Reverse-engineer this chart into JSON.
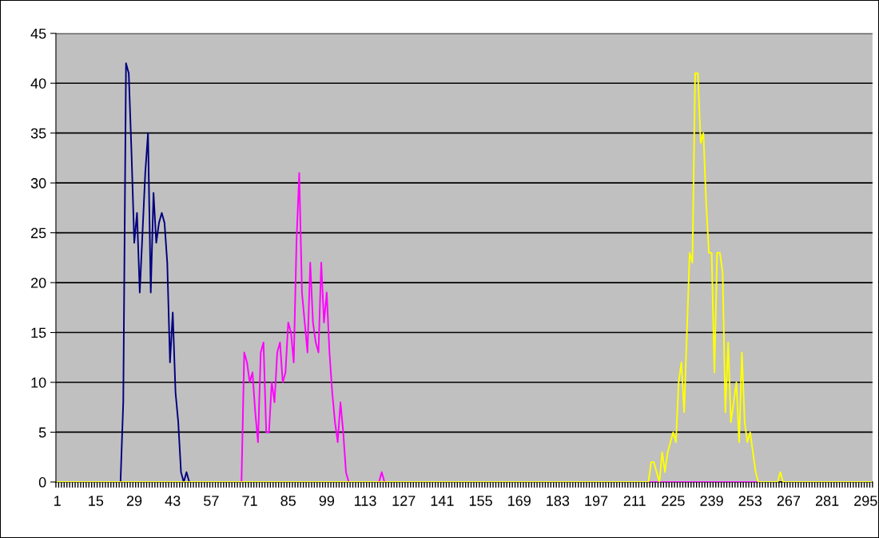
{
  "chart_data": {
    "type": "line",
    "categories": [
      "1",
      null,
      null,
      null,
      null,
      null,
      null,
      null,
      null,
      null,
      null,
      null,
      null,
      null,
      "15",
      null,
      null,
      null,
      null,
      null,
      null,
      null,
      null,
      null,
      null,
      null,
      null,
      null,
      "29",
      null,
      null,
      null,
      null,
      null,
      null,
      null,
      null,
      null,
      null,
      null,
      null,
      null,
      "43",
      null,
      null,
      null,
      null,
      null,
      null,
      null,
      null,
      null,
      null,
      null,
      null,
      null,
      "57",
      null,
      null,
      null,
      null,
      null,
      null,
      null,
      null,
      null,
      null,
      null,
      null,
      null,
      "71",
      null,
      null,
      null,
      null,
      null,
      null,
      null,
      null,
      null,
      null,
      null,
      null,
      null,
      "85",
      null,
      null,
      null,
      null,
      null,
      null,
      null,
      null,
      null,
      null,
      null,
      null,
      null,
      "99",
      null,
      null,
      null,
      null,
      null,
      null,
      null,
      null,
      null,
      null,
      null,
      null,
      null,
      "113",
      null,
      null,
      null,
      null,
      null,
      null,
      null,
      null,
      null,
      null,
      null,
      null,
      null,
      "127",
      null,
      null,
      null,
      null,
      null,
      null,
      null,
      null,
      null,
      null,
      null,
      null,
      null,
      "141",
      null,
      null,
      null,
      null,
      null,
      null,
      null,
      null,
      null,
      null,
      null,
      null,
      null,
      "155",
      null,
      null,
      null,
      null,
      null,
      null,
      null,
      null,
      null,
      null,
      null,
      null,
      null,
      "169",
      null,
      null,
      null,
      null,
      null,
      null,
      null,
      null,
      null,
      null,
      null,
      null,
      null,
      "183",
      null,
      null,
      null,
      null,
      null,
      null,
      null,
      null,
      null,
      null,
      null,
      null,
      null,
      "197",
      null,
      null,
      null,
      null,
      null,
      null,
      null,
      null,
      null,
      null,
      null,
      null,
      null,
      "211",
      null,
      null,
      null,
      null,
      null,
      null,
      null,
      null,
      null,
      null,
      null,
      null,
      null,
      "225",
      null,
      null,
      null,
      null,
      null,
      null,
      null,
      null,
      null,
      null,
      null,
      null,
      null,
      "239",
      null,
      null,
      null,
      null,
      null,
      null,
      null,
      null,
      null,
      null,
      null,
      null,
      null,
      "253",
      null,
      null,
      null,
      null,
      null,
      null,
      null,
      null,
      null,
      null,
      null,
      null,
      null,
      "267",
      null,
      null,
      null,
      null,
      null,
      null,
      null,
      null,
      null,
      null,
      null,
      null,
      null,
      "281",
      null,
      null,
      null,
      null,
      null,
      null,
      null,
      null,
      null,
      null,
      null,
      null,
      null,
      "295",
      null,
      null
    ],
    "series": [
      {
        "color": "#000080",
        "values": [
          null,
          null,
          null,
          null,
          null,
          null,
          null,
          null,
          null,
          null,
          null,
          null,
          null,
          null,
          null,
          null,
          null,
          null,
          null,
          null,
          null,
          null,
          0,
          0,
          8,
          42,
          41,
          33,
          24,
          27,
          19,
          25,
          31,
          35,
          19,
          29,
          24,
          26,
          27,
          26,
          22,
          12,
          17,
          9,
          6,
          1,
          0,
          1,
          0,
          null,
          null,
          null,
          null,
          null,
          null,
          null,
          null,
          null,
          null,
          null,
          null,
          null,
          null,
          null,
          null,
          null,
          null,
          null,
          null,
          null,
          null,
          null,
          null,
          null,
          null,
          null,
          null,
          null,
          null,
          null,
          null,
          null,
          null,
          null,
          null,
          null,
          null,
          null,
          null,
          null,
          null,
          null,
          null,
          null,
          null,
          null,
          null,
          null,
          null,
          null,
          null,
          null,
          null,
          null,
          null,
          null,
          null,
          null,
          null,
          null,
          null,
          null,
          null,
          null,
          null,
          null,
          null,
          null,
          null,
          null,
          null,
          null,
          null,
          null,
          null,
          null,
          null,
          null,
          null,
          null,
          null,
          null,
          null,
          null,
          null,
          null,
          null,
          null,
          null,
          null,
          null,
          null,
          null,
          null,
          null,
          null,
          null,
          null,
          null,
          null,
          null,
          null,
          null,
          null,
          null,
          null,
          null,
          null,
          null,
          null,
          null,
          null,
          null,
          null,
          null,
          null,
          null,
          null,
          null,
          null,
          null,
          null,
          null,
          null,
          null,
          null,
          null,
          null,
          null,
          null,
          null,
          null,
          null,
          null,
          null,
          null,
          null,
          null,
          null,
          null,
          null,
          null,
          null,
          null,
          null,
          null,
          null,
          null,
          null,
          null,
          null,
          null,
          null,
          null,
          null,
          null,
          null,
          null,
          null,
          null,
          null,
          null,
          null,
          null,
          null,
          null,
          null,
          null,
          null,
          null,
          null,
          null,
          null,
          null,
          null,
          null,
          null,
          null,
          null,
          null,
          null,
          null,
          null,
          null,
          null,
          null,
          null,
          null,
          null,
          null,
          null,
          null,
          null,
          null,
          null,
          null,
          null,
          null,
          null,
          null,
          null,
          null,
          null,
          null,
          null,
          null,
          null,
          null,
          null,
          null,
          null,
          null,
          null,
          null,
          null,
          null,
          null,
          null,
          null,
          null,
          null,
          null,
          null,
          null,
          null,
          null,
          null,
          null,
          null,
          null,
          null,
          null,
          null,
          null,
          null,
          null,
          null,
          null,
          null,
          null,
          null,
          null,
          null,
          null,
          null,
          null,
          null
        ]
      },
      {
        "color": "#ff00ff",
        "values": [
          null,
          null,
          null,
          null,
          null,
          null,
          null,
          null,
          null,
          null,
          null,
          null,
          null,
          null,
          null,
          null,
          null,
          null,
          null,
          null,
          null,
          null,
          null,
          null,
          null,
          null,
          null,
          null,
          null,
          null,
          null,
          null,
          null,
          null,
          null,
          null,
          null,
          null,
          null,
          null,
          null,
          null,
          null,
          null,
          null,
          null,
          null,
          null,
          null,
          null,
          null,
          null,
          null,
          null,
          null,
          null,
          null,
          null,
          null,
          null,
          null,
          null,
          null,
          null,
          null,
          null,
          0,
          0,
          13,
          12,
          10,
          11,
          7,
          4,
          13,
          14,
          5,
          5,
          10,
          8,
          13,
          14,
          10,
          11,
          16,
          15,
          12,
          24,
          31,
          19,
          16,
          13,
          22,
          16,
          14,
          13,
          22,
          16,
          19,
          13,
          9,
          6,
          4,
          8,
          5,
          1,
          0,
          0,
          0,
          0,
          0,
          0,
          0,
          0,
          0,
          0,
          0,
          0,
          1,
          0,
          0,
          null,
          null,
          null,
          null,
          null,
          null,
          null,
          null,
          null,
          null,
          null,
          null,
          null,
          null,
          null,
          null,
          null,
          null,
          null,
          null,
          null,
          null,
          null,
          null,
          null,
          null,
          null,
          null,
          null,
          null,
          null,
          null,
          null,
          null,
          null,
          null,
          null,
          null,
          null,
          null,
          null,
          null,
          null,
          null,
          null,
          null,
          null,
          null,
          null,
          null,
          null,
          null,
          null,
          null,
          null,
          null,
          null,
          null,
          null,
          null,
          null,
          null,
          null,
          null,
          null,
          null,
          null,
          null,
          null,
          null,
          null,
          null,
          null,
          null,
          null,
          null,
          null,
          null,
          null,
          null,
          null,
          null,
          null,
          null,
          null,
          null,
          null,
          null,
          null,
          null,
          null,
          null,
          null,
          0,
          0,
          0,
          0,
          0,
          0,
          0,
          0,
          0,
          0,
          0,
          0,
          0,
          0,
          0,
          0,
          0,
          0,
          0,
          0,
          0,
          0,
          0,
          0,
          0,
          0,
          0,
          0,
          0,
          0,
          0,
          0,
          0,
          0,
          0,
          0,
          0,
          0,
          0,
          0,
          0,
          0,
          0,
          null,
          null,
          null,
          null,
          null,
          null,
          null,
          null,
          null,
          null,
          null,
          null,
          null,
          null,
          null,
          null,
          null,
          null,
          null,
          null,
          null,
          null,
          null,
          null,
          null,
          null,
          null,
          null,
          null,
          null,
          null,
          null,
          null,
          null,
          null,
          null,
          null,
          null,
          null,
          null
        ]
      },
      {
        "color": "#ffff00",
        "values": [
          0,
          0,
          0,
          0,
          0,
          0,
          0,
          0,
          0,
          0,
          0,
          0,
          0,
          0,
          0,
          0,
          0,
          0,
          0,
          0,
          0,
          0,
          0,
          0,
          0,
          0,
          0,
          0,
          0,
          0,
          0,
          0,
          0,
          0,
          0,
          0,
          0,
          0,
          0,
          0,
          0,
          0,
          0,
          0,
          0,
          0,
          0,
          0,
          0,
          0,
          0,
          0,
          0,
          0,
          0,
          0,
          0,
          0,
          0,
          0,
          0,
          0,
          0,
          0,
          0,
          0,
          0,
          0,
          0,
          0,
          0,
          0,
          0,
          0,
          0,
          0,
          0,
          0,
          0,
          0,
          0,
          0,
          0,
          0,
          0,
          0,
          0,
          0,
          0,
          0,
          0,
          0,
          0,
          0,
          0,
          0,
          0,
          0,
          0,
          0,
          0,
          0,
          0,
          0,
          0,
          0,
          0,
          0,
          0,
          0,
          0,
          0,
          0,
          0,
          0,
          0,
          0,
          0,
          0,
          0,
          0,
          0,
          0,
          0,
          0,
          0,
          0,
          0,
          0,
          0,
          0,
          0,
          0,
          0,
          0,
          0,
          0,
          0,
          0,
          0,
          0,
          0,
          0,
          0,
          0,
          0,
          0,
          0,
          0,
          0,
          0,
          0,
          0,
          0,
          0,
          0,
          0,
          0,
          0,
          0,
          0,
          0,
          0,
          0,
          0,
          0,
          0,
          0,
          0,
          0,
          0,
          0,
          0,
          0,
          0,
          0,
          0,
          0,
          0,
          0,
          0,
          0,
          0,
          0,
          0,
          0,
          0,
          0,
          0,
          0,
          0,
          0,
          0,
          0,
          0,
          0,
          0,
          0,
          0,
          0,
          0,
          0,
          0,
          0,
          0,
          0,
          0,
          0,
          0,
          0,
          0,
          0,
          0,
          0,
          0,
          0,
          2,
          2,
          1,
          0,
          3,
          1,
          3,
          4,
          5,
          4,
          10,
          12,
          7,
          15,
          23,
          22,
          41,
          41,
          34,
          35,
          28,
          23,
          23,
          11,
          23,
          23,
          21,
          7,
          14,
          6,
          8,
          10,
          4,
          13,
          6,
          4,
          5,
          3,
          1,
          0,
          0,
          0,
          0,
          0,
          0,
          0,
          0,
          1,
          0,
          0,
          0,
          0,
          0,
          0,
          0,
          0,
          0,
          0,
          0,
          0,
          0,
          0,
          0,
          0,
          0,
          0,
          0,
          0,
          0,
          0,
          0,
          0,
          0,
          0,
          0,
          0,
          0,
          0,
          0,
          0,
          0
        ]
      }
    ],
    "ylim": [
      0,
      45
    ],
    "yticks": [
      0,
      5,
      10,
      15,
      20,
      25,
      30,
      35,
      40,
      45
    ],
    "grid": "y",
    "line_style": "solid"
  }
}
